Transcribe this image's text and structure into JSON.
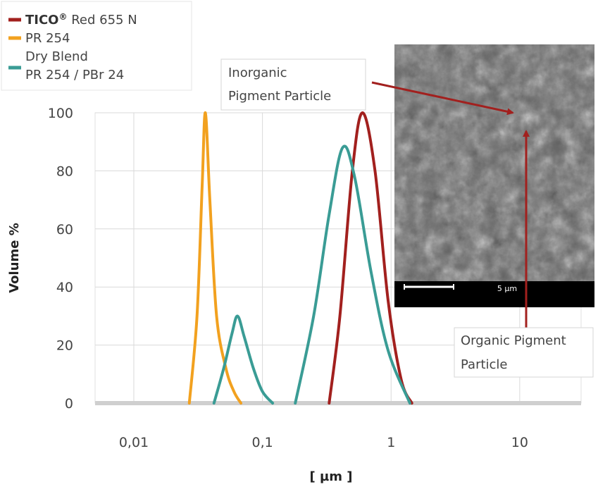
{
  "chart_data": {
    "type": "line",
    "x_scale": "log",
    "xlabel": "[ µm ]",
    "ylabel": "Volume %",
    "xlim": [
      0.005,
      30
    ],
    "ylim": [
      0,
      100
    ],
    "x_ticks": [
      0.01,
      0.1,
      1,
      10
    ],
    "x_tick_labels": [
      "0,01",
      "0,1",
      "1",
      "10"
    ],
    "y_ticks": [
      0,
      20,
      40,
      60,
      80,
      100
    ],
    "y_tick_labels": [
      "0",
      "20",
      "40",
      "60",
      "80",
      "100"
    ],
    "grid": true,
    "legend_position": "top-left",
    "series": [
      {
        "name_bold": "TICO",
        "name_mark": "®",
        "name_rest": " Red 655 N",
        "color": "#a2201e",
        "segments": [
          {
            "x": [
              0.33,
              0.4,
              0.5,
              0.6,
              0.75,
              0.95,
              1.2,
              1.45
            ],
            "y": [
              0,
              30,
              80,
              100,
              80,
              35,
              8,
              0
            ]
          }
        ]
      },
      {
        "name": "PR 254",
        "color": "#f2a11f",
        "segments": [
          {
            "x": [
              0.027,
              0.031,
              0.034,
              0.036,
              0.039,
              0.044,
              0.052,
              0.06,
              0.068
            ],
            "y": [
              0,
              30,
              75,
              100,
              70,
              30,
              12,
              4,
              0
            ]
          }
        ]
      },
      {
        "name": "Dry Blend",
        "name_line2": "PR 254 / PBr 24",
        "color": "#3a9c95",
        "segments": [
          {
            "x": [
              0.042,
              0.05,
              0.058,
              0.064,
              0.072,
              0.085,
              0.1,
              0.12
            ],
            "y": [
              0,
              12,
              24,
              30,
              23,
              12,
              4,
              0
            ]
          },
          {
            "x": [
              0.18,
              0.25,
              0.33,
              0.42,
              0.52,
              0.7,
              0.95,
              1.4
            ],
            "y": [
              0,
              30,
              65,
              88,
              78,
              45,
              18,
              0
            ]
          }
        ]
      }
    ],
    "annotations": [
      {
        "lines": [
          "Inorganic",
          "Pigment Particle"
        ]
      },
      {
        "lines": [
          "Organic Pigment",
          "Particle"
        ]
      }
    ],
    "inset_image": {
      "description_label": "",
      "scale_text": "5 µm"
    }
  }
}
